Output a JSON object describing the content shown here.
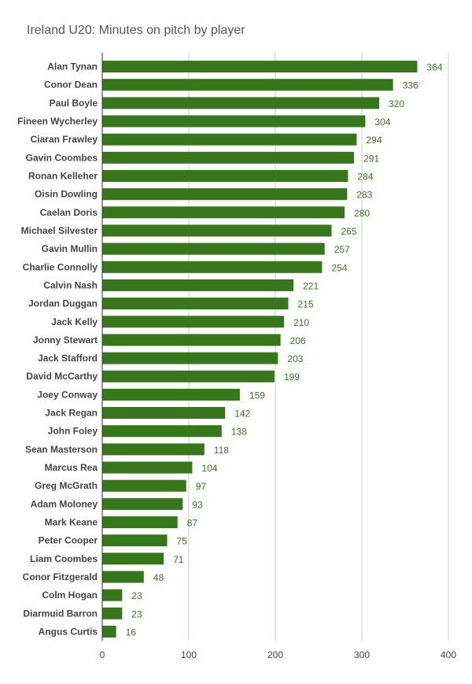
{
  "chart_data": {
    "type": "bar",
    "orientation": "horizontal",
    "title": "Ireland U20: Minutes on pitch by player",
    "xlabel": "",
    "ylabel": "",
    "categories": [
      "Alan Tynan",
      "Conor Dean",
      "Paul Boyle",
      "Fineen Wycherley",
      "Ciaran Frawley",
      "Gavin Coombes",
      "Ronan Kelleher",
      "Oisin Dowling",
      "Caelan Doris",
      "Michael Silvester",
      "Gavin Mullin",
      "Charlie Connolly",
      "Calvin Nash",
      "Jordan Duggan",
      "Jack Kelly",
      "Jonny Stewart",
      "Jack Stafford",
      "David McCarthy",
      "Joey Conway",
      "Jack Regan",
      "John Foley",
      "Sean Masterson",
      "Marcus Rea",
      "Greg McGrath",
      "Adam Moloney",
      "Mark Keane",
      "Peter Cooper",
      "Liam Coombes",
      "Conor Fitzgerald",
      "Colm Hogan",
      "Diarmuid Barron",
      "Angus Curtis"
    ],
    "values": [
      364,
      336,
      320,
      304,
      294,
      291,
      284,
      283,
      280,
      265,
      257,
      254,
      221,
      215,
      210,
      206,
      203,
      199,
      159,
      142,
      138,
      118,
      104,
      97,
      93,
      87,
      75,
      71,
      48,
      23,
      23,
      16
    ],
    "xlim": [
      0,
      400
    ],
    "xticks": [
      "0",
      "100",
      "200",
      "300",
      "400"
    ],
    "grid": true,
    "data_labels": true,
    "legend": "none",
    "bar_color": "#38761d"
  }
}
